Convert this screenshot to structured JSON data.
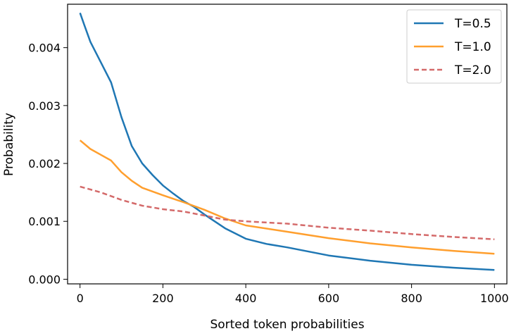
{
  "chart_data": {
    "type": "line",
    "xlabel": "Sorted token probabilities",
    "ylabel": "Probability",
    "xlim": [
      -30,
      1030
    ],
    "ylim": [
      -8e-05,
      0.00475
    ],
    "xticks": [
      0,
      200,
      400,
      600,
      800,
      1000
    ],
    "xtick_labels": [
      "0",
      "200",
      "400",
      "600",
      "800",
      "1000"
    ],
    "yticks": [
      0.0,
      0.001,
      0.002,
      0.003,
      0.004
    ],
    "ytick_labels": [
      "0.000",
      "0.001",
      "0.002",
      "0.003",
      "0.004"
    ],
    "grid": false,
    "legend_position": "top-right",
    "series": [
      {
        "name": "T=0.5",
        "color": "#1f77b4",
        "dash": "solid",
        "x": [
          0,
          10,
          25,
          50,
          75,
          100,
          125,
          150,
          175,
          200,
          225,
          250,
          275,
          300,
          350,
          400,
          450,
          500,
          600,
          700,
          800,
          900,
          1000
        ],
        "y": [
          0.0046,
          0.0044,
          0.0041,
          0.00375,
          0.0034,
          0.0028,
          0.0023,
          0.002,
          0.0018,
          0.00162,
          0.00148,
          0.00135,
          0.00125,
          0.00112,
          0.00088,
          0.0007,
          0.00061,
          0.00055,
          0.00041,
          0.00032,
          0.00025,
          0.0002,
          0.00016
        ]
      },
      {
        "name": "T=1.0",
        "color": "#ff9f2e",
        "dash": "solid",
        "x": [
          0,
          25,
          50,
          75,
          100,
          125,
          150,
          200,
          250,
          300,
          350,
          400,
          500,
          600,
          700,
          800,
          900,
          1000
        ],
        "y": [
          0.0024,
          0.00225,
          0.00215,
          0.00205,
          0.00185,
          0.0017,
          0.00158,
          0.00145,
          0.00133,
          0.0012,
          0.00105,
          0.00093,
          0.00082,
          0.00071,
          0.00062,
          0.00055,
          0.00049,
          0.00044
        ]
      },
      {
        "name": "T=2.0",
        "color": "#d46a6a",
        "dash": "dashed",
        "x": [
          0,
          50,
          100,
          150,
          200,
          250,
          300,
          350,
          400,
          500,
          600,
          700,
          800,
          900,
          1000
        ],
        "y": [
          0.0016,
          0.0015,
          0.00137,
          0.00127,
          0.00121,
          0.00117,
          0.0011,
          0.00103,
          0.001,
          0.00096,
          0.00089,
          0.00084,
          0.00078,
          0.00073,
          0.00069
        ]
      }
    ]
  }
}
